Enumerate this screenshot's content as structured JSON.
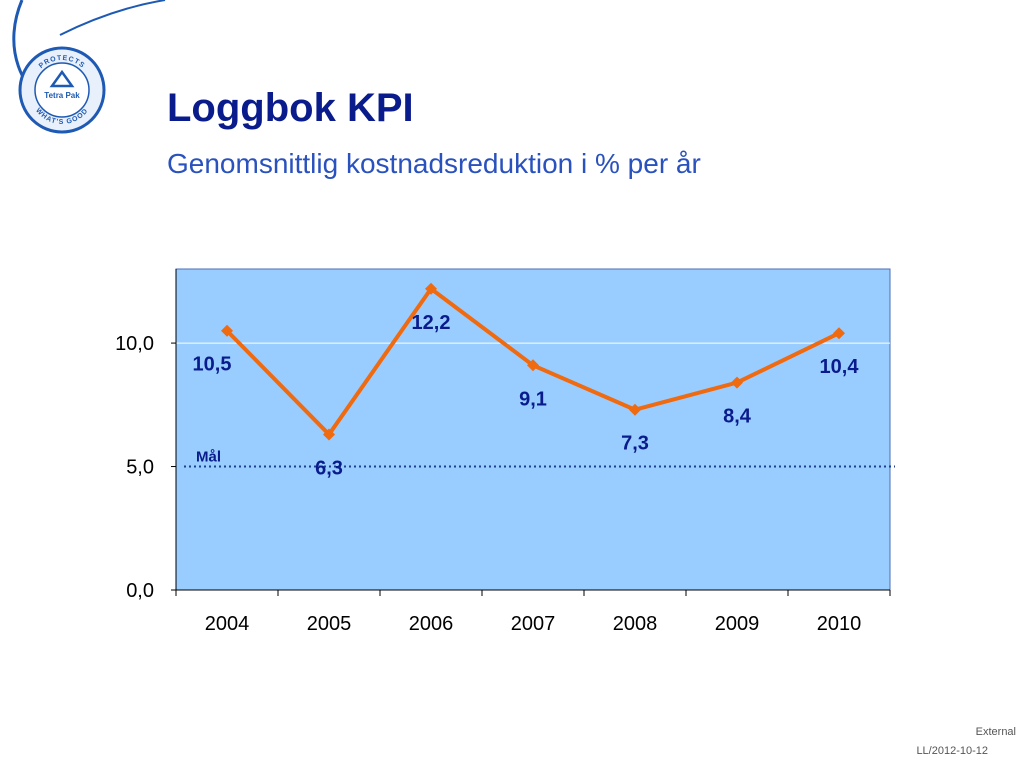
{
  "slide": {
    "title": "Loggbok KPI",
    "subtitle": "Genomsnittlig kostnadsreduktion i % per år",
    "footer_classification": "External",
    "footer_ref": "LL/2012-10-12",
    "logo_text": {
      "top_arc": "PROTECTS",
      "brand": "Tetra Pak",
      "bottom_arc": "WHAT'S GOOD"
    }
  },
  "colors": {
    "plot_bg": "#99ccff",
    "series": "#f06a10",
    "data_label": "#0a1c8c",
    "target_line": "#1f3f8f",
    "title": "#0a1c8c",
    "subtitle": "#2a52be",
    "logo_blue": "#1e5ab4"
  },
  "chart_data": {
    "type": "line",
    "categories": [
      "2004",
      "2005",
      "2006",
      "2007",
      "2008",
      "2009",
      "2010"
    ],
    "values": [
      10.5,
      6.3,
      12.2,
      9.1,
      7.3,
      8.4,
      10.4
    ],
    "data_labels": [
      "10,5",
      "6,3",
      "12,2",
      "9,1",
      "7,3",
      "8,4",
      "10,4"
    ],
    "label_positions": [
      "below",
      "below",
      "below",
      "below",
      "below",
      "below",
      "below"
    ],
    "ylim": [
      0,
      13
    ],
    "y_ticks": [
      0,
      5,
      10
    ],
    "y_tick_labels": [
      "0,0",
      "5,0",
      "10,0"
    ],
    "gridlines": [
      10
    ],
    "target": {
      "value": 5,
      "label": "Mål",
      "style": "dotted"
    },
    "marker": "diamond",
    "legend": "none",
    "xlabel": "",
    "ylabel": ""
  }
}
